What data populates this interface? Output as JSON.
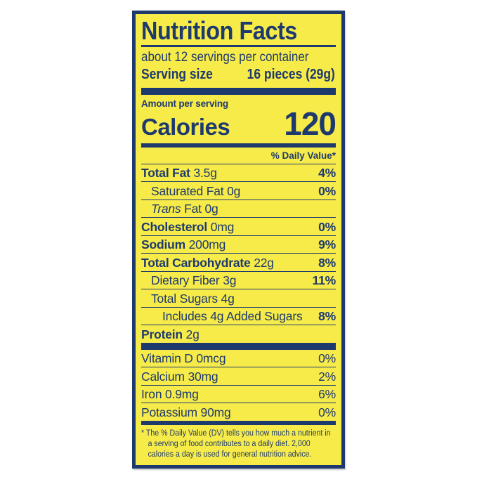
{
  "label": {
    "title": "Nutrition Facts",
    "servings_per_container": "about 12 servings per container",
    "serving_size": {
      "label": "Serving size",
      "value": "16 pieces (29g)"
    },
    "amount_per_serving": "Amount per serving",
    "calories": {
      "label": "Calories",
      "value": "120"
    },
    "daily_value_header": "% Daily Value*",
    "nutrients": [
      {
        "bold": "Total Fat",
        "text": "3.5g",
        "dv": "4%",
        "dv_bold": true,
        "indent": 0
      },
      {
        "text": "Saturated Fat 0g",
        "dv": "0%",
        "dv_bold": true,
        "indent": 1
      },
      {
        "italic": "Trans",
        "text": "Fat 0g",
        "dv": "",
        "indent": 1
      },
      {
        "bold": "Cholesterol",
        "text": "0mg",
        "dv": "0%",
        "dv_bold": true,
        "indent": 0
      },
      {
        "bold": "Sodium",
        "text": "200mg",
        "dv": "9%",
        "dv_bold": true,
        "indent": 0
      },
      {
        "bold": "Total Carbohydrate",
        "text": "22g",
        "dv": "8%",
        "dv_bold": true,
        "indent": 0
      },
      {
        "text": "Dietary Fiber 3g",
        "dv": "11%",
        "dv_bold": true,
        "indent": 1
      },
      {
        "text": "Total Sugars 4g",
        "dv": "",
        "indent": 1
      },
      {
        "text": "Includes 4g Added Sugars",
        "dv": "8%",
        "dv_bold": true,
        "indent": 2
      },
      {
        "bold": "Protein",
        "text": "2g",
        "dv": "",
        "indent": 0
      }
    ],
    "micronutrients": [
      {
        "text": "Vitamin D 0mcg",
        "dv": "0%",
        "dv_bold": false,
        "indent": 0
      },
      {
        "text": "Calcium 30mg",
        "dv": "2%",
        "dv_bold": false,
        "indent": 0
      },
      {
        "text": "Iron 0.9mg",
        "dv": "6%",
        "dv_bold": false,
        "indent": 0
      },
      {
        "text": "Potassium 90mg",
        "dv": "0%",
        "dv_bold": false,
        "indent": 0
      }
    ],
    "footnote": "* The % Daily Value (DV) tells you how much a nutrient in a serving of food contributes to a daily diet. 2,000 calories a day is used for general nutrition advice.",
    "colors": {
      "ink": "#1e3a6d",
      "background": "#f7eb4a",
      "page": "#ffffff"
    }
  }
}
